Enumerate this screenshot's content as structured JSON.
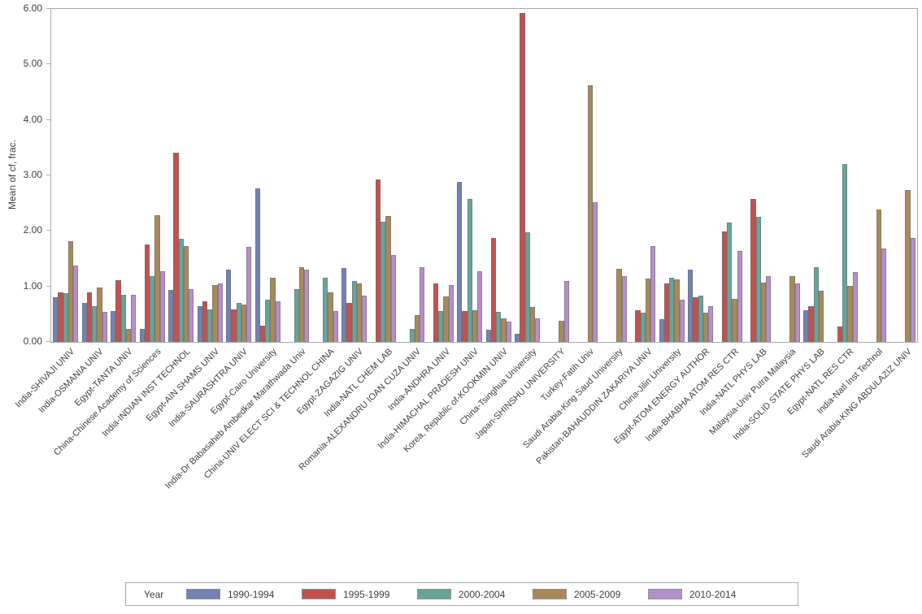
{
  "y_axis": {
    "label": "Mean of cf, frac.",
    "ticks": [
      "0.00",
      "1.00",
      "2.00",
      "3.00",
      "4.00",
      "5.00",
      "6.00"
    ],
    "max": 6
  },
  "legend": {
    "title": "Year"
  },
  "colors": {
    "series_1990_1994": "#7282b2",
    "series_1995_1999": "#c25250",
    "series_2000_2004": "#68a49a",
    "series_2005_2009": "#a8895c",
    "series_2010_2014": "#b48fc9",
    "axis_border": "#a6abb0",
    "text": "#404040"
  },
  "chart_data": {
    "type": "bar",
    "title": "",
    "xlabel": "",
    "ylabel": "Mean of cf, frac.",
    "ylim": [
      0,
      6
    ],
    "grid": false,
    "legend_position": "bottom",
    "categories": [
      "India-SHIVAJI UNIV",
      "India-OSMANIA UNIV",
      "Egypt-TANTA UNIV",
      "China-Chinese Academy of Sciences",
      "India-INDIAN INST TECHNOL",
      "Egypt-AIN SHAMS UNIV",
      "India-SAURASHTRA UNIV",
      "Egypt-Cairo University",
      "India-Dr Babasaheb Ambedkar Marathwada Univ",
      "China-UNIV ELECT SCI & TECHNOL CHINA",
      "Egypt-ZAGAZIG UNIV",
      "India-NATL CHEM LAB",
      "Romania-ALEXANDRU IOAN CUZA UNIV",
      "India-ANDHRA UNIV",
      "India-HIMACHAL PRADESH UNIV",
      "Korea, Republic of-KOOKMIN UNIV",
      "China-Tsinghua University",
      "Japan-SHINSHU UNIVERSITY",
      "Turkey-Fatih Univ",
      "Saudi Arabia-King Saud University",
      "Pakistan-BAHAUDDIN ZAKARIYA UNIV",
      "China-Jilin University",
      "Egypt-ATOM ENERGY AUTHOR",
      "India-BHABHA ATOM RES CTR",
      "India-NATL PHYS LAB",
      "Malaysia-Univ Putra Malaysia",
      "India-SOLID STATE PHYS LAB",
      "Egypt-NATL RES CTR",
      "India-Natl Inst Technol",
      "Saudi Arabia-KING ABDULAZIZ UNIV"
    ],
    "series": [
      {
        "name": "1990-1994",
        "color": "#7282b2",
        "values": [
          0.8,
          0.7,
          0.55,
          0.24,
          0.94,
          0.65,
          1.3,
          2.76,
          null,
          null,
          1.33,
          null,
          null,
          null,
          2.89,
          0.22,
          0.14,
          null,
          null,
          null,
          null,
          0.41,
          1.3,
          null,
          null,
          null,
          0.57,
          null,
          null,
          null
        ]
      },
      {
        "name": "1995-1999",
        "color": "#c25250",
        "values": [
          0.9,
          0.89,
          1.11,
          1.76,
          3.41,
          0.73,
          0.59,
          0.3,
          null,
          null,
          0.7,
          2.92,
          null,
          1.06,
          0.56,
          1.87,
          5.93,
          null,
          null,
          null,
          0.57,
          1.06,
          0.8,
          1.99,
          2.57,
          null,
          0.64,
          0.28,
          null,
          null
        ]
      },
      {
        "name": "2000-2004",
        "color": "#68a49a",
        "values": [
          0.88,
          0.64,
          0.85,
          1.18,
          1.86,
          0.58,
          0.7,
          0.76,
          0.95,
          1.15,
          1.1,
          2.17,
          0.24,
          0.56,
          2.58,
          0.54,
          1.97,
          null,
          null,
          null,
          0.53,
          1.16,
          0.84,
          2.15,
          2.26,
          null,
          1.34,
          3.21,
          null,
          null
        ]
      },
      {
        "name": "2005-2009",
        "color": "#a8895c",
        "values": [
          1.81,
          0.98,
          0.24,
          2.28,
          1.73,
          1.03,
          0.67,
          1.16,
          1.35,
          0.89,
          1.06,
          2.27,
          0.48,
          0.82,
          0.57,
          0.43,
          0.63,
          0.38,
          4.62,
          1.31,
          1.14,
          1.12,
          0.52,
          0.77,
          1.07,
          1.18,
          0.92,
          1.01,
          2.39,
          2.73
        ]
      },
      {
        "name": "2010-2014",
        "color": "#b48fc9",
        "values": [
          1.37,
          0.54,
          0.85,
          1.28,
          0.95,
          1.06,
          1.71,
          0.73,
          1.3,
          0.55,
          0.84,
          1.56,
          1.34,
          1.02,
          1.27,
          0.36,
          0.42,
          1.1,
          2.51,
          1.18,
          1.73,
          0.76,
          0.65,
          1.64,
          1.19,
          1.05,
          null,
          1.26,
          1.69,
          1.87
        ]
      }
    ]
  }
}
